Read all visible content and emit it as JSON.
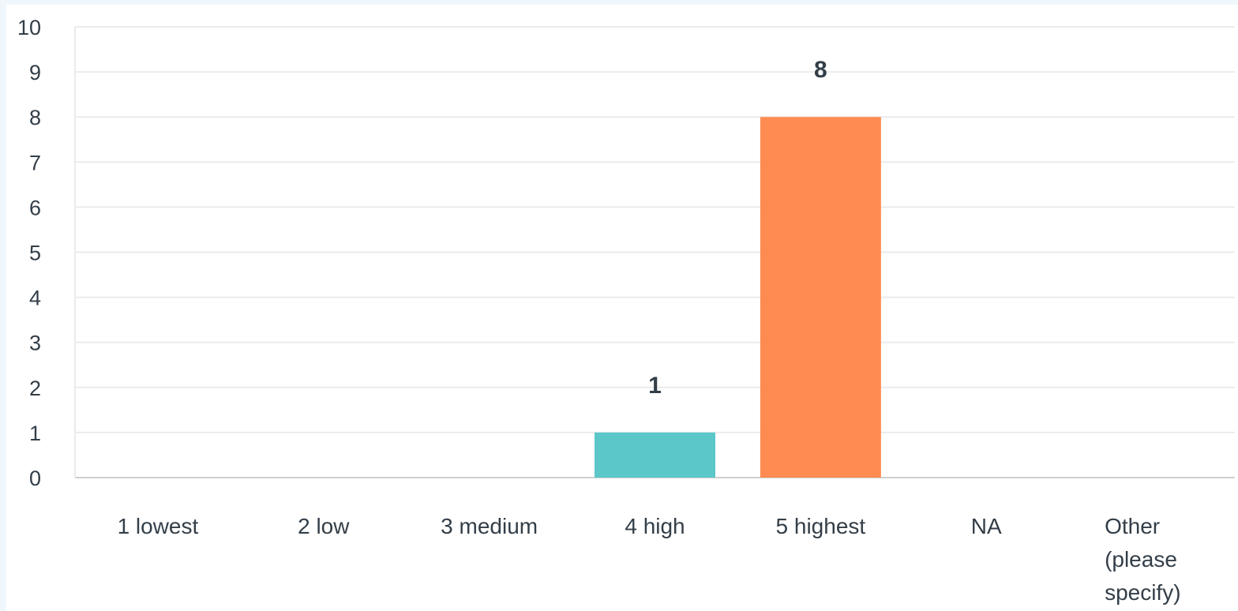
{
  "chart_data": {
    "type": "bar",
    "categories": [
      [
        "1 lowest"
      ],
      [
        "2 low"
      ],
      [
        "3 medium"
      ],
      [
        "4 high"
      ],
      [
        "5 highest"
      ],
      [
        "NA"
      ],
      [
        "Other",
        "(please",
        "specify)"
      ]
    ],
    "values": [
      0,
      0,
      0,
      1,
      8,
      0,
      0
    ],
    "data_labels": [
      "",
      "",
      "",
      "1",
      "8",
      "",
      ""
    ],
    "bar_colors": [
      "#5bc7c9",
      "#5bc7c9",
      "#5bc7c9",
      "#5bc7c9",
      "#ff8b52",
      "#5bc7c9",
      "#5bc7c9"
    ],
    "yticks": [
      "0",
      "1",
      "2",
      "3",
      "4",
      "5",
      "6",
      "7",
      "8",
      "9",
      "10"
    ],
    "ylim": [
      0,
      10
    ],
    "grid": true,
    "colors": {
      "gridline": "#ebebeb",
      "baseline": "#cfcfcf",
      "text": "#333e48",
      "background": "#ffffff",
      "frame": "#f0f7fc"
    }
  }
}
